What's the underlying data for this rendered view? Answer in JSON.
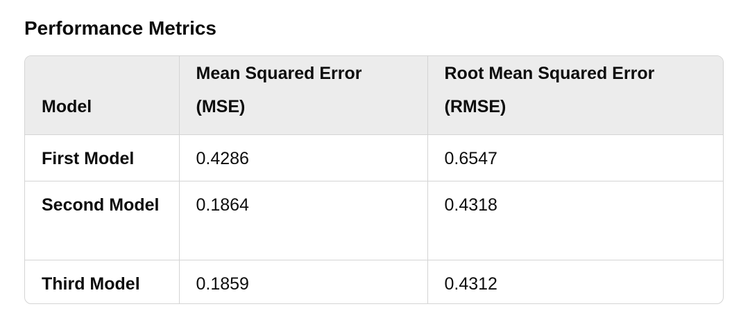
{
  "heading": "Performance Metrics",
  "table": {
    "headers": [
      "Model",
      "Mean Squared Error (MSE)",
      "Root Mean Squared Error (RMSE)"
    ],
    "rows": [
      [
        "First Model",
        "0.4286",
        "0.6547"
      ],
      [
        "Second Model",
        "0.1864",
        "0.4318"
      ],
      [
        "Third Model",
        "0.1859",
        "0.4312"
      ]
    ]
  }
}
